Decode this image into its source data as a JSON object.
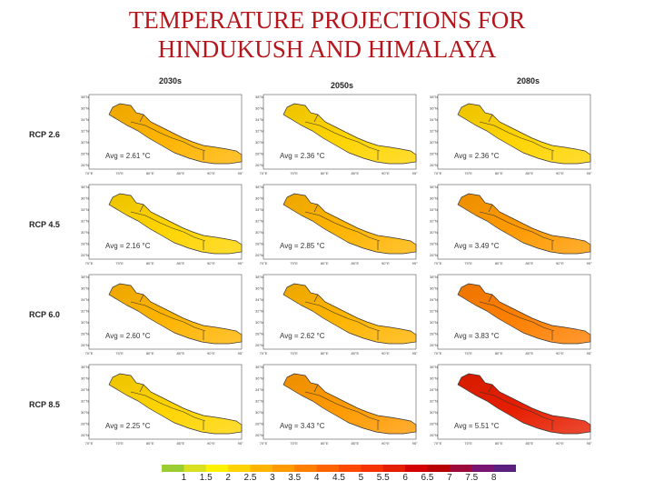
{
  "title_line1": "TEMPERATURE PROJECTIONS FOR",
  "title_line2": "HINDUKUSH AND HIMALAYA",
  "columns": [
    "2030s",
    "2050s",
    "2080s"
  ],
  "rows": [
    "RCP 2.6",
    "RCP 4.5",
    "RCP 6.0",
    "RCP 8.5"
  ],
  "averages": [
    [
      "Avg = 2.61 °C",
      "Avg = 2.36 °C",
      "Avg = 2.36 °C"
    ],
    [
      "Avg = 2.16 °C",
      "Avg = 2.85 °C",
      "Avg = 3.49 °C"
    ],
    [
      "Avg = 2.60 °C",
      "Avg = 2.62 °C",
      "Avg = 3.83 °C"
    ],
    [
      "Avg = 2.25 °C",
      "Avg = 3.43 °C",
      "Avg = 5.51 °C"
    ]
  ],
  "average_values": [
    [
      2.61,
      2.36,
      2.36
    ],
    [
      2.16,
      2.85,
      3.49
    ],
    [
      2.6,
      2.62,
      3.83
    ],
    [
      2.25,
      3.43,
      5.51
    ]
  ],
  "lat_ticks": [
    "38°N",
    "36°N",
    "34°N",
    "32°N",
    "30°N",
    "28°N",
    "26°N"
  ],
  "lon_ticks": [
    "70°E",
    "75°E",
    "80°E",
    "85°E",
    "90°E",
    "95°E"
  ],
  "colorbar": {
    "labels": [
      "1",
      "1.5",
      "2",
      "2.5",
      "3",
      "3.5",
      "4",
      "4.5",
      "5",
      "5.5",
      "6",
      "6.5",
      "7",
      "7.5",
      "8"
    ],
    "colors": [
      "#9acd32",
      "#d9e021",
      "#fff200",
      "#ffd400",
      "#ffb400",
      "#ff9a00",
      "#ff7f00",
      "#ff6400",
      "#ff4800",
      "#f53200",
      "#e61e00",
      "#d40000",
      "#b80000",
      "#9c0a3c",
      "#7a1473",
      "#5a1f7f"
    ]
  }
}
